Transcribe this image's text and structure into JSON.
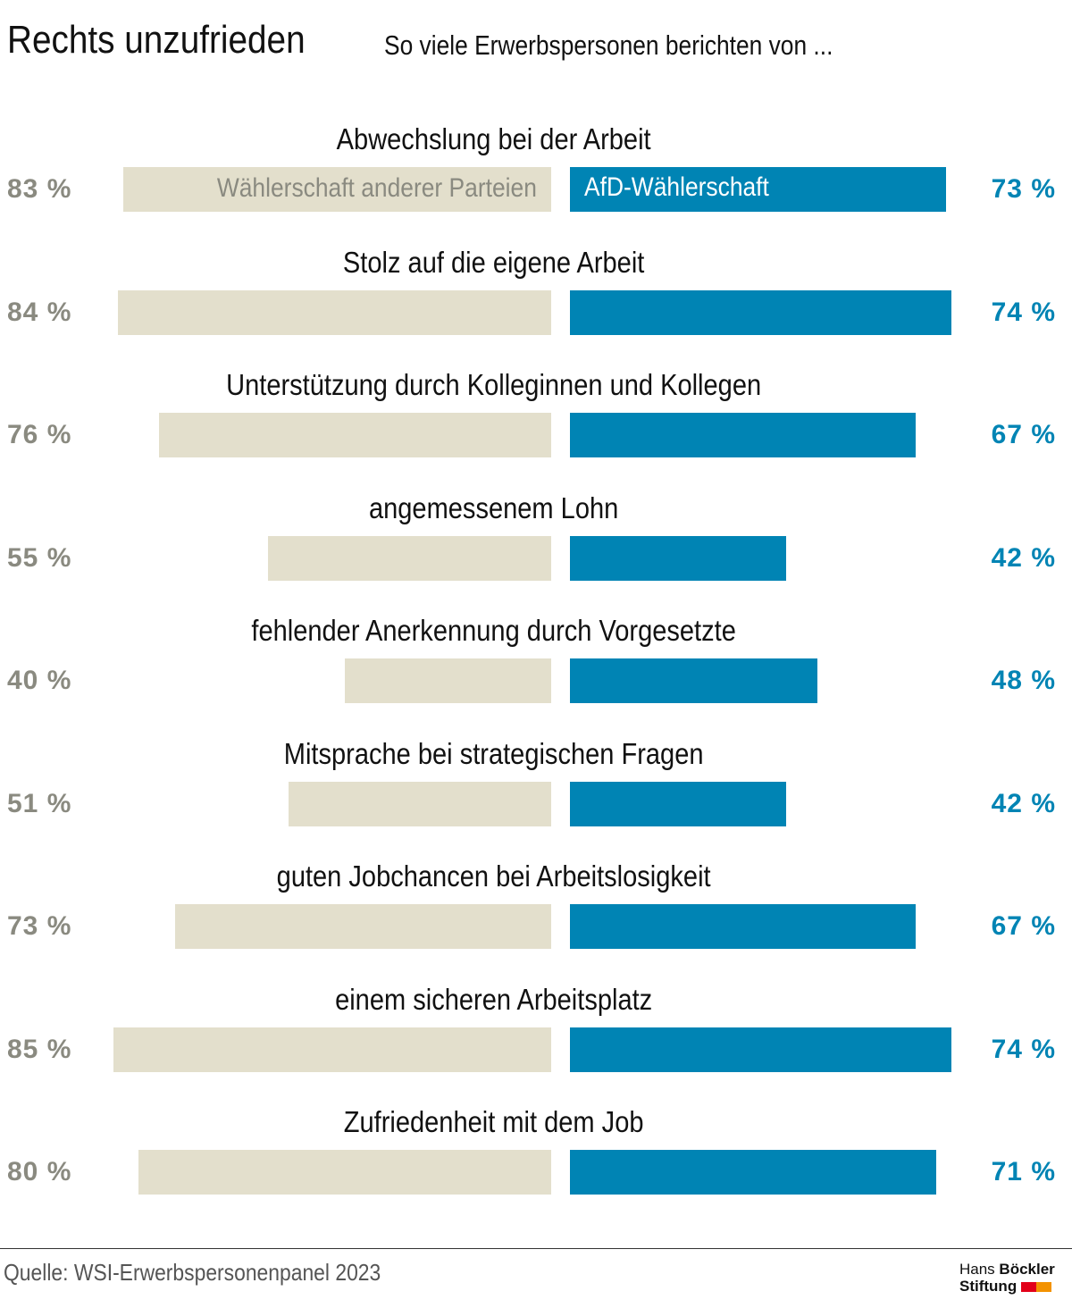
{
  "title": "Rechts unzufrieden",
  "subtitle": "So viele Erwerbspersonen berichten von ...",
  "source": "Quelle: WSI-Erwerbspersonenpanel 2023",
  "logo": {
    "line1a": "Hans",
    "line1b": "Böckler",
    "line2": "Stiftung",
    "colors": [
      "#e2001a",
      "#f39200"
    ]
  },
  "colors": {
    "others": "#e3dfcc",
    "afd": "#0084b4",
    "others_text": "#8a8a80"
  },
  "chart_data": {
    "type": "bar",
    "orientation": "horizontal-butterfly",
    "title": "Rechts unzufrieden",
    "subtitle": "So viele Erwerbspersonen berichten von ...",
    "unit": "%",
    "categories": [
      "Abwechslung bei der Arbeit",
      "Stolz auf die eigene Arbeit",
      "Unterstützung durch Kolleginnen und Kollegen",
      "angemessenem Lohn",
      "fehlender Anerkennung durch Vorgesetzte",
      "Mitsprache bei strategischen Fragen",
      "guten Jobchancen bei Arbeitslosigkeit",
      "einem sicheren Arbeitsplatz",
      "Zufriedenheit mit dem Job"
    ],
    "series": [
      {
        "name": "Wählerschaft anderer Parteien",
        "values": [
          83,
          84,
          76,
          55,
          40,
          51,
          73,
          85,
          80
        ]
      },
      {
        "name": "AfD-Wählerschaft",
        "values": [
          73,
          74,
          67,
          42,
          48,
          42,
          67,
          74,
          71
        ]
      }
    ]
  }
}
